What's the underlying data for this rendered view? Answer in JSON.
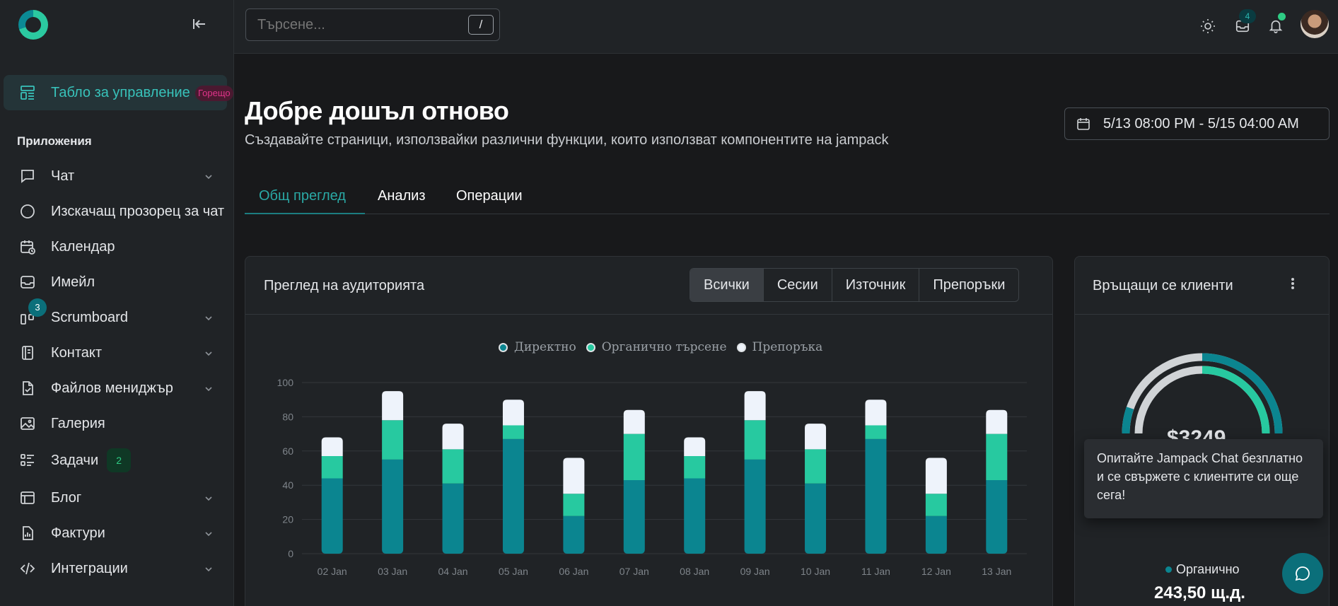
{
  "sidebar": {
    "active_badge": "Горещо",
    "section_label": "Приложения",
    "items": [
      {
        "label": "Табло за управление"
      },
      {
        "label": "Чат"
      },
      {
        "label": "Изскачащ прозорец за чат"
      },
      {
        "label": "Календар"
      },
      {
        "label": "Имейл"
      },
      {
        "label": "Scrumboard",
        "badge": "3"
      },
      {
        "label": "Контакт"
      },
      {
        "label": "Файлов мениджър"
      },
      {
        "label": "Галерия"
      },
      {
        "label": "Задачи",
        "badge": "2"
      },
      {
        "label": "Блог"
      },
      {
        "label": "Фактури"
      },
      {
        "label": "Интеграции"
      }
    ]
  },
  "topbar": {
    "search_placeholder": "Търсене...",
    "search_shortcut": "/",
    "inbox_count": "4"
  },
  "header": {
    "title": "Добре дошъл отново",
    "subtitle": "Създавайте страници, използвайки различни функции, които използват компонентите на jampack",
    "date_range": "5/13 08:00 PM - 5/15 04:00 AM"
  },
  "tabs": [
    {
      "label": "Общ преглед"
    },
    {
      "label": "Анализ"
    },
    {
      "label": "Операции"
    }
  ],
  "audience": {
    "title": "Преглед на аудиторията",
    "filters": [
      "Всички",
      "Сесии",
      "Източник",
      "Препоръки"
    ]
  },
  "chart_data": {
    "type": "bar",
    "stacked": true,
    "categories": [
      "02 Jan",
      "03 Jan",
      "04 Jan",
      "05 Jan",
      "06 Jan",
      "07 Jan",
      "08 Jan",
      "09 Jan",
      "10 Jan",
      "11 Jan",
      "12 Jan",
      "13 Jan"
    ],
    "series": [
      {
        "name": "Директно",
        "color": "#0b8590",
        "values": [
          44,
          55,
          41,
          67,
          22,
          43,
          44,
          55,
          41,
          67,
          22,
          43
        ]
      },
      {
        "name": "Органично търсене",
        "color": "#27c9a0",
        "values": [
          13,
          23,
          20,
          8,
          13,
          27,
          13,
          23,
          20,
          8,
          13,
          27
        ]
      },
      {
        "name": "Препоръка",
        "color": "#eef3fb",
        "values": [
          11,
          17,
          15,
          15,
          21,
          14,
          11,
          17,
          15,
          15,
          21,
          14
        ]
      }
    ],
    "yticks": [
      "0",
      "20",
      "40",
      "60",
      "80",
      "100"
    ],
    "ylim": [
      0,
      100
    ],
    "grid": true,
    "legend_position": "top"
  },
  "returning": {
    "title": "Връщащи се клиенти",
    "gauge_value": "$3249",
    "tooltip": "Опитайте Jampack Chat безплатно и се свържете с клиентите си още сега!",
    "organic_label": "Органично",
    "organic_value": "243,50 щ.д.",
    "colors": {
      "outer": "#0b8590",
      "inner": "#27c9a0",
      "track": "#d0d3d6"
    }
  }
}
